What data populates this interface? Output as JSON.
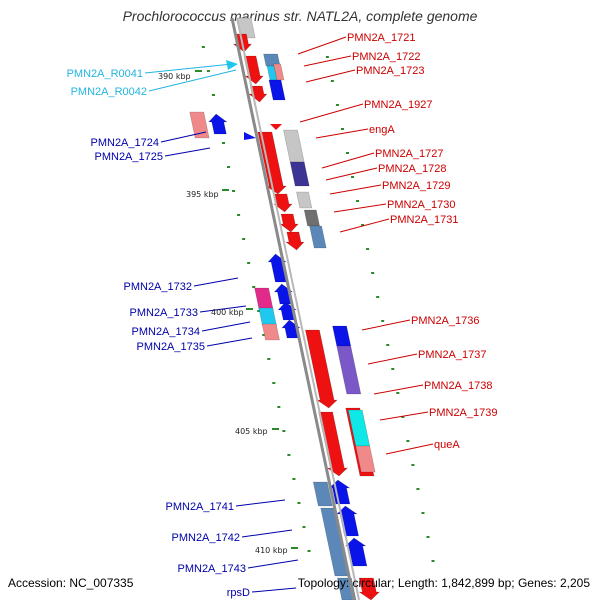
{
  "title": "Prochlorococcus marinus str. NATL2A, complete genome",
  "accession": "Accession: NC_007335",
  "topology": "Topology: circular; Length: 1,842,899 bp; Genes: 2,205",
  "colors": {
    "backbone": "#888888",
    "tick": "#2a8a2a",
    "forward_label": "#cc0000",
    "reverse_label": "#0000aa",
    "rna_label": "#22b5e0"
  },
  "scale_labels": [
    "390 kbp",
    "395 kbp",
    "400 kbp",
    "405 kbp",
    "410 kbp"
  ],
  "forward_genes": [
    "PMN2A_1721",
    "PMN2A_1722",
    "PMN2A_1723",
    "PMN2A_1927",
    "engA",
    "PMN2A_1727",
    "PMN2A_1728",
    "PMN2A_1729",
    "PMN2A_1730",
    "PMN2A_1731",
    "PMN2A_1736",
    "PMN2A_1737",
    "PMN2A_1738",
    "PMN2A_1739",
    "queA"
  ],
  "reverse_genes": [
    "PMN2A_1724",
    "PMN2A_1725",
    "PMN2A_1732",
    "PMN2A_1733",
    "PMN2A_1734",
    "PMN2A_1735",
    "PMN2A_1741",
    "PMN2A_1742",
    "PMN2A_1743",
    "rpsD"
  ],
  "rna_genes": [
    "PMN2A_R0041",
    "PMN2A_R0042"
  ]
}
